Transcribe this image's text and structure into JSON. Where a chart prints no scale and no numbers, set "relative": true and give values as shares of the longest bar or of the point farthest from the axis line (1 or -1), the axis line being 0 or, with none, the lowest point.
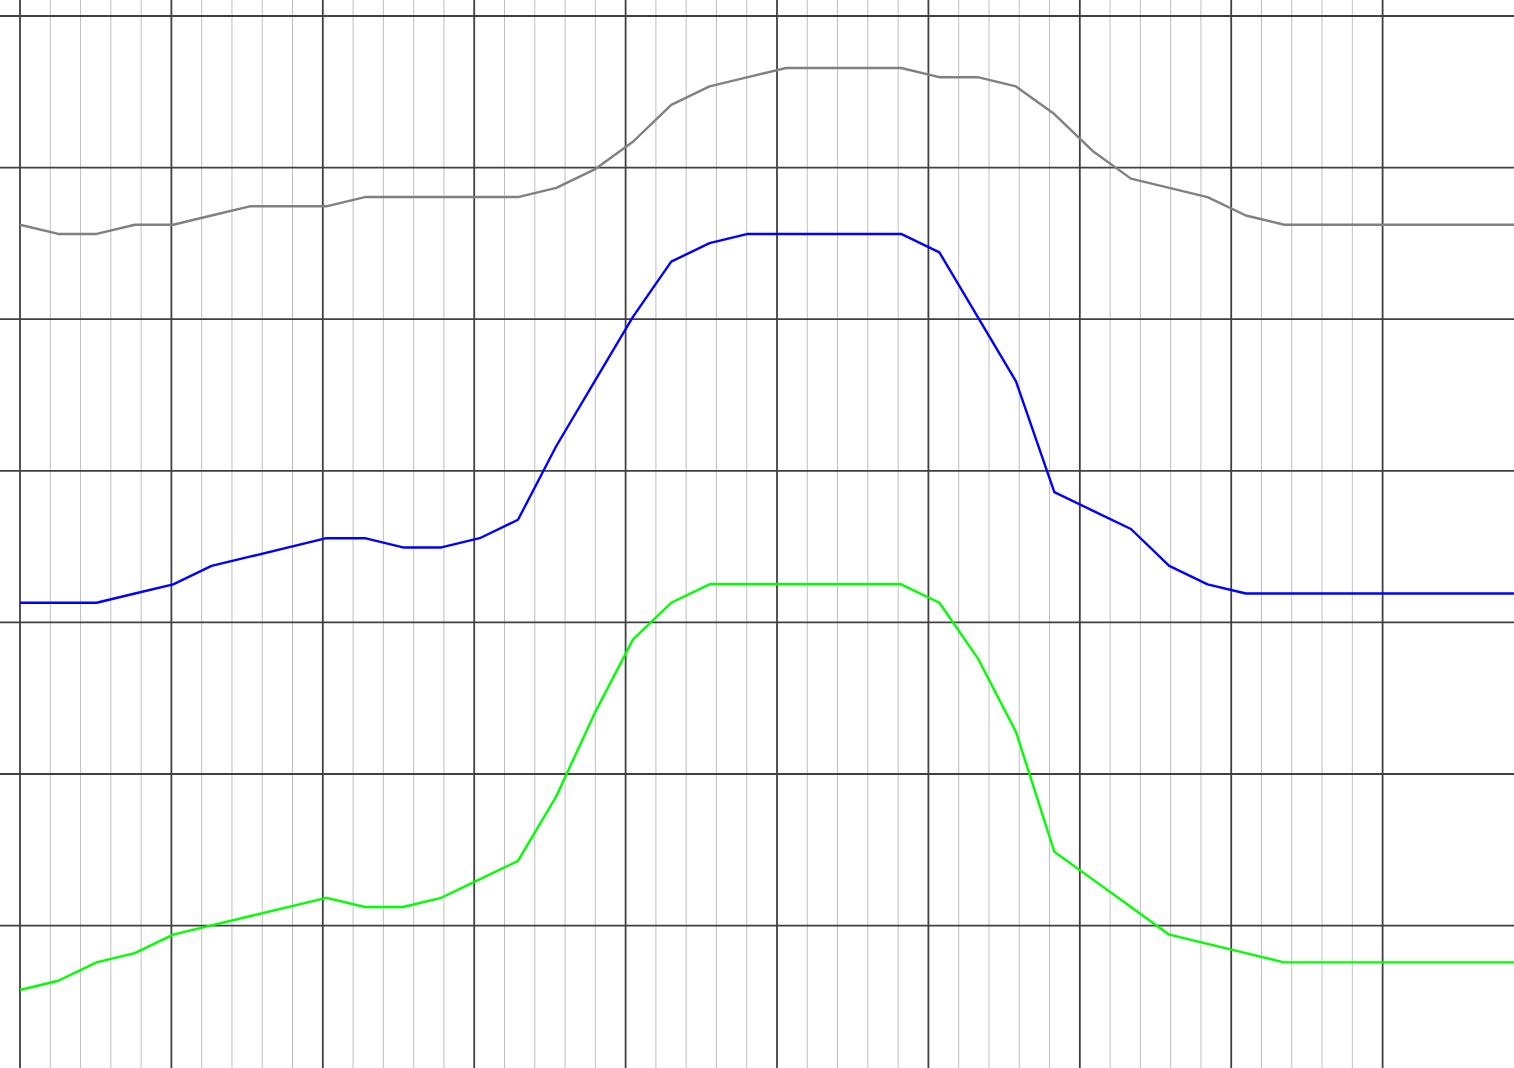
{
  "chart_data": {
    "type": "line",
    "relative": true,
    "grid": true,
    "categories": [
      null,
      null,
      null,
      null,
      null,
      null,
      null,
      null,
      null,
      null,
      null,
      null,
      null,
      null,
      null,
      null,
      null,
      null,
      null,
      null,
      null,
      null,
      null,
      null,
      null,
      null,
      null,
      null,
      null,
      null,
      null,
      null,
      null,
      null,
      null,
      null,
      null,
      null,
      null,
      null
    ],
    "series": [
      {
        "color": "#808080",
        "values": [
          0.83,
          0.82,
          0.82,
          0.83,
          0.83,
          0.84,
          0.85,
          0.85,
          0.85,
          0.86,
          0.86,
          0.86,
          0.86,
          0.86,
          0.87,
          0.89,
          0.92,
          0.96,
          0.98,
          0.99,
          1.0,
          1.0,
          1.0,
          1.0,
          0.99,
          0.99,
          0.98,
          0.95,
          0.91,
          0.88,
          0.87,
          0.86,
          0.84,
          0.83,
          0.83,
          0.83,
          0.83,
          0.83,
          0.83,
          0.83
        ]
      },
      {
        "color": "#0000ff",
        "values": [
          0.42,
          0.42,
          0.42,
          0.43,
          0.44,
          0.46,
          0.47,
          0.48,
          0.49,
          0.49,
          0.48,
          0.48,
          0.49,
          0.51,
          0.59,
          0.66,
          0.73,
          0.79,
          0.81,
          0.82,
          0.82,
          0.82,
          0.82,
          0.82,
          0.8,
          0.73,
          0.66,
          0.54,
          0.52,
          0.5,
          0.46,
          0.44,
          0.43,
          0.43,
          0.43,
          0.43,
          0.43,
          0.43,
          0.43,
          0.43
        ]
      },
      {
        "color": "#00ff00",
        "values": [
          0.0,
          0.01,
          0.03,
          0.04,
          0.06,
          0.07,
          0.08,
          0.09,
          0.1,
          0.09,
          0.09,
          0.1,
          0.12,
          0.14,
          0.21,
          0.3,
          0.38,
          0.42,
          0.44,
          0.44,
          0.44,
          0.44,
          0.44,
          0.44,
          0.42,
          0.36,
          0.28,
          0.15,
          0.12,
          0.09,
          0.06,
          0.05,
          0.04,
          0.03,
          0.03,
          0.03,
          0.03,
          0.03,
          0.03,
          0.03
        ]
      }
    ]
  }
}
